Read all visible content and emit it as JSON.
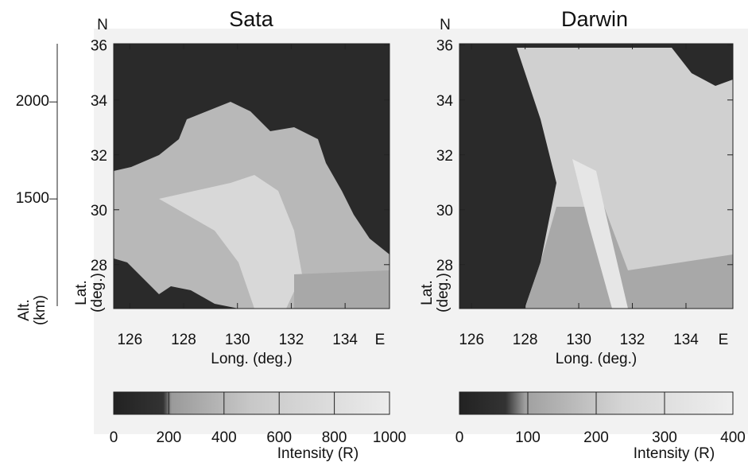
{
  "chart_data": [
    {
      "type": "image-map",
      "title": "Sata",
      "corner_labels": [
        "N",
        "E"
      ],
      "xlabel": "Long. (deg.)",
      "ylabel": [
        "Lat.",
        "(deg.)"
      ],
      "xlim": [
        125.4,
        135.65
      ],
      "xticks": [
        126,
        128,
        130,
        132,
        134
      ],
      "ylim": [
        26.4,
        36.05
      ],
      "yticks": [
        28,
        30,
        32,
        34,
        36
      ],
      "altitude_axis": {
        "label": [
          "Alt.",
          "(km)"
        ],
        "ylim": [
          935,
          2300
        ],
        "yticks": [
          1500,
          2000
        ]
      },
      "colorbar": {
        "label": "Intensity (R)",
        "lim": [
          0,
          1000
        ],
        "ticks": [
          0,
          200,
          400,
          600,
          800,
          1000
        ]
      }
    },
    {
      "type": "image-map",
      "title": "Darwin",
      "corner_labels": [
        "N",
        "E"
      ],
      "xlabel": "Long. (deg.)",
      "ylabel": [
        "Lat.",
        "(deg.)"
      ],
      "xlim": [
        125.55,
        135.75
      ],
      "xticks": [
        126,
        128,
        130,
        132,
        134
      ],
      "ylim": [
        26.4,
        36.05
      ],
      "yticks": [
        28,
        30,
        32,
        34,
        36
      ],
      "colorbar": {
        "label": "Intensity (R)",
        "lim": [
          0,
          400
        ],
        "ticks": [
          0,
          100,
          200,
          300,
          400
        ]
      }
    }
  ]
}
